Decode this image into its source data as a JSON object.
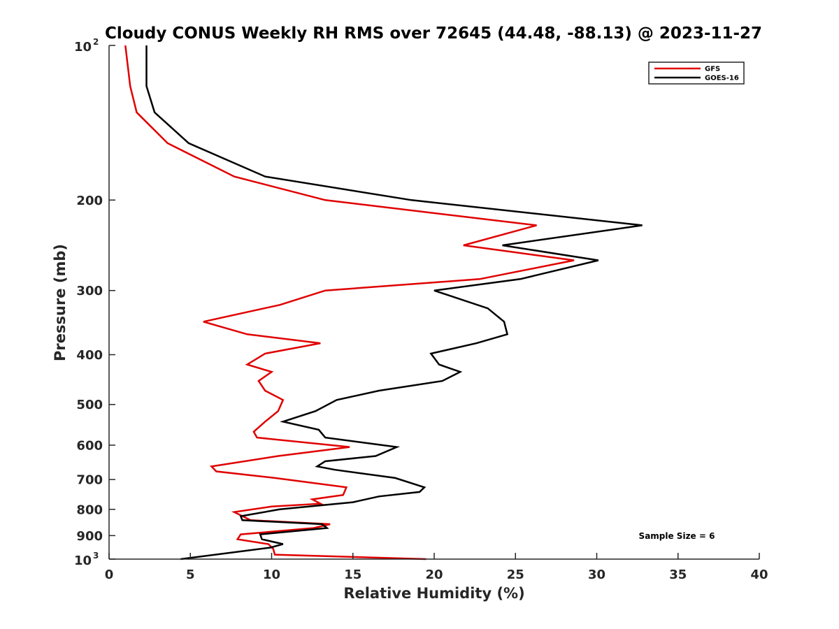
{
  "chart_data": {
    "type": "line",
    "title": "Cloudy CONUS Weekly RH RMS over 72645 (44.48, -88.13) @ 2023-11-27",
    "xlabel": "Relative Humidity (%)",
    "ylabel": "Pressure (mb)",
    "xlim": [
      0,
      40
    ],
    "ylim": [
      100,
      1000
    ],
    "y_scale": "log",
    "y_reversed": true,
    "x_ticks": [
      "0",
      "5",
      "10",
      "15",
      "20",
      "25",
      "30",
      "35",
      "40"
    ],
    "y_ticks": [
      {
        "value": 100,
        "base": "10",
        "exp": "2"
      },
      {
        "value": 200,
        "label": "200"
      },
      {
        "value": 300,
        "label": "300"
      },
      {
        "value": 400,
        "label": "400"
      },
      {
        "value": 500,
        "label": "500"
      },
      {
        "value": 600,
        "label": "600"
      },
      {
        "value": 700,
        "label": "700"
      },
      {
        "value": 800,
        "label": "800"
      },
      {
        "value": 900,
        "label": "900"
      },
      {
        "value": 1000,
        "base": "10",
        "exp": "3"
      }
    ],
    "grid": false,
    "legend_position": "top-right",
    "annotation": "Sample Size = 6",
    "series": [
      {
        "name": "GFS",
        "color": "#e00000",
        "points": [
          [
            1.0,
            100
          ],
          [
            1.3,
            120
          ],
          [
            1.7,
            135
          ],
          [
            3.6,
            155
          ],
          [
            7.7,
            180
          ],
          [
            13.3,
            200
          ],
          [
            26.3,
            224
          ],
          [
            21.8,
            245
          ],
          [
            28.6,
            262
          ],
          [
            22.8,
            285
          ],
          [
            13.3,
            300
          ],
          [
            10.5,
            320
          ],
          [
            5.8,
            345
          ],
          [
            8.5,
            365
          ],
          [
            13.0,
            380
          ],
          [
            9.6,
            398
          ],
          [
            8.5,
            418
          ],
          [
            10.0,
            432
          ],
          [
            9.2,
            450
          ],
          [
            9.6,
            470
          ],
          [
            10.7,
            490
          ],
          [
            10.4,
            515
          ],
          [
            9.6,
            540
          ],
          [
            8.9,
            565
          ],
          [
            9.1,
            580
          ],
          [
            14.8,
            605
          ],
          [
            10.4,
            630
          ],
          [
            6.3,
            660
          ],
          [
            6.6,
            675
          ],
          [
            10.2,
            695
          ],
          [
            14.6,
            725
          ],
          [
            14.4,
            750
          ],
          [
            12.5,
            765
          ],
          [
            13.0,
            780
          ],
          [
            10.0,
            790
          ],
          [
            7.7,
            810
          ],
          [
            8.7,
            840
          ],
          [
            13.6,
            855
          ],
          [
            12.6,
            870
          ],
          [
            8.1,
            895
          ],
          [
            7.9,
            915
          ],
          [
            9.8,
            935
          ],
          [
            10.1,
            955
          ],
          [
            10.2,
            980
          ],
          [
            19.5,
            1000
          ]
        ]
      },
      {
        "name": "GOES-16",
        "color": "#000000",
        "points": [
          [
            2.3,
            100
          ],
          [
            2.3,
            120
          ],
          [
            2.8,
            135
          ],
          [
            4.9,
            155
          ],
          [
            9.6,
            180
          ],
          [
            18.6,
            200
          ],
          [
            32.8,
            224
          ],
          [
            24.2,
            245
          ],
          [
            30.1,
            262
          ],
          [
            25.3,
            285
          ],
          [
            20.0,
            300
          ],
          [
            23.3,
            325
          ],
          [
            24.3,
            345
          ],
          [
            24.5,
            365
          ],
          [
            22.6,
            380
          ],
          [
            19.8,
            398
          ],
          [
            20.3,
            418
          ],
          [
            21.6,
            432
          ],
          [
            20.5,
            450
          ],
          [
            16.6,
            470
          ],
          [
            14.0,
            490
          ],
          [
            12.7,
            515
          ],
          [
            10.7,
            540
          ],
          [
            12.9,
            560
          ],
          [
            13.3,
            580
          ],
          [
            17.7,
            605
          ],
          [
            16.4,
            630
          ],
          [
            13.3,
            645
          ],
          [
            12.8,
            660
          ],
          [
            13.9,
            670
          ],
          [
            17.6,
            695
          ],
          [
            19.4,
            725
          ],
          [
            19.1,
            740
          ],
          [
            16.6,
            755
          ],
          [
            15.0,
            775
          ],
          [
            10.5,
            800
          ],
          [
            8.1,
            825
          ],
          [
            8.2,
            840
          ],
          [
            13.1,
            855
          ],
          [
            13.4,
            870
          ],
          [
            9.3,
            895
          ],
          [
            9.4,
            915
          ],
          [
            10.7,
            935
          ],
          [
            9.9,
            950
          ],
          [
            4.4,
            1000
          ]
        ]
      }
    ]
  }
}
